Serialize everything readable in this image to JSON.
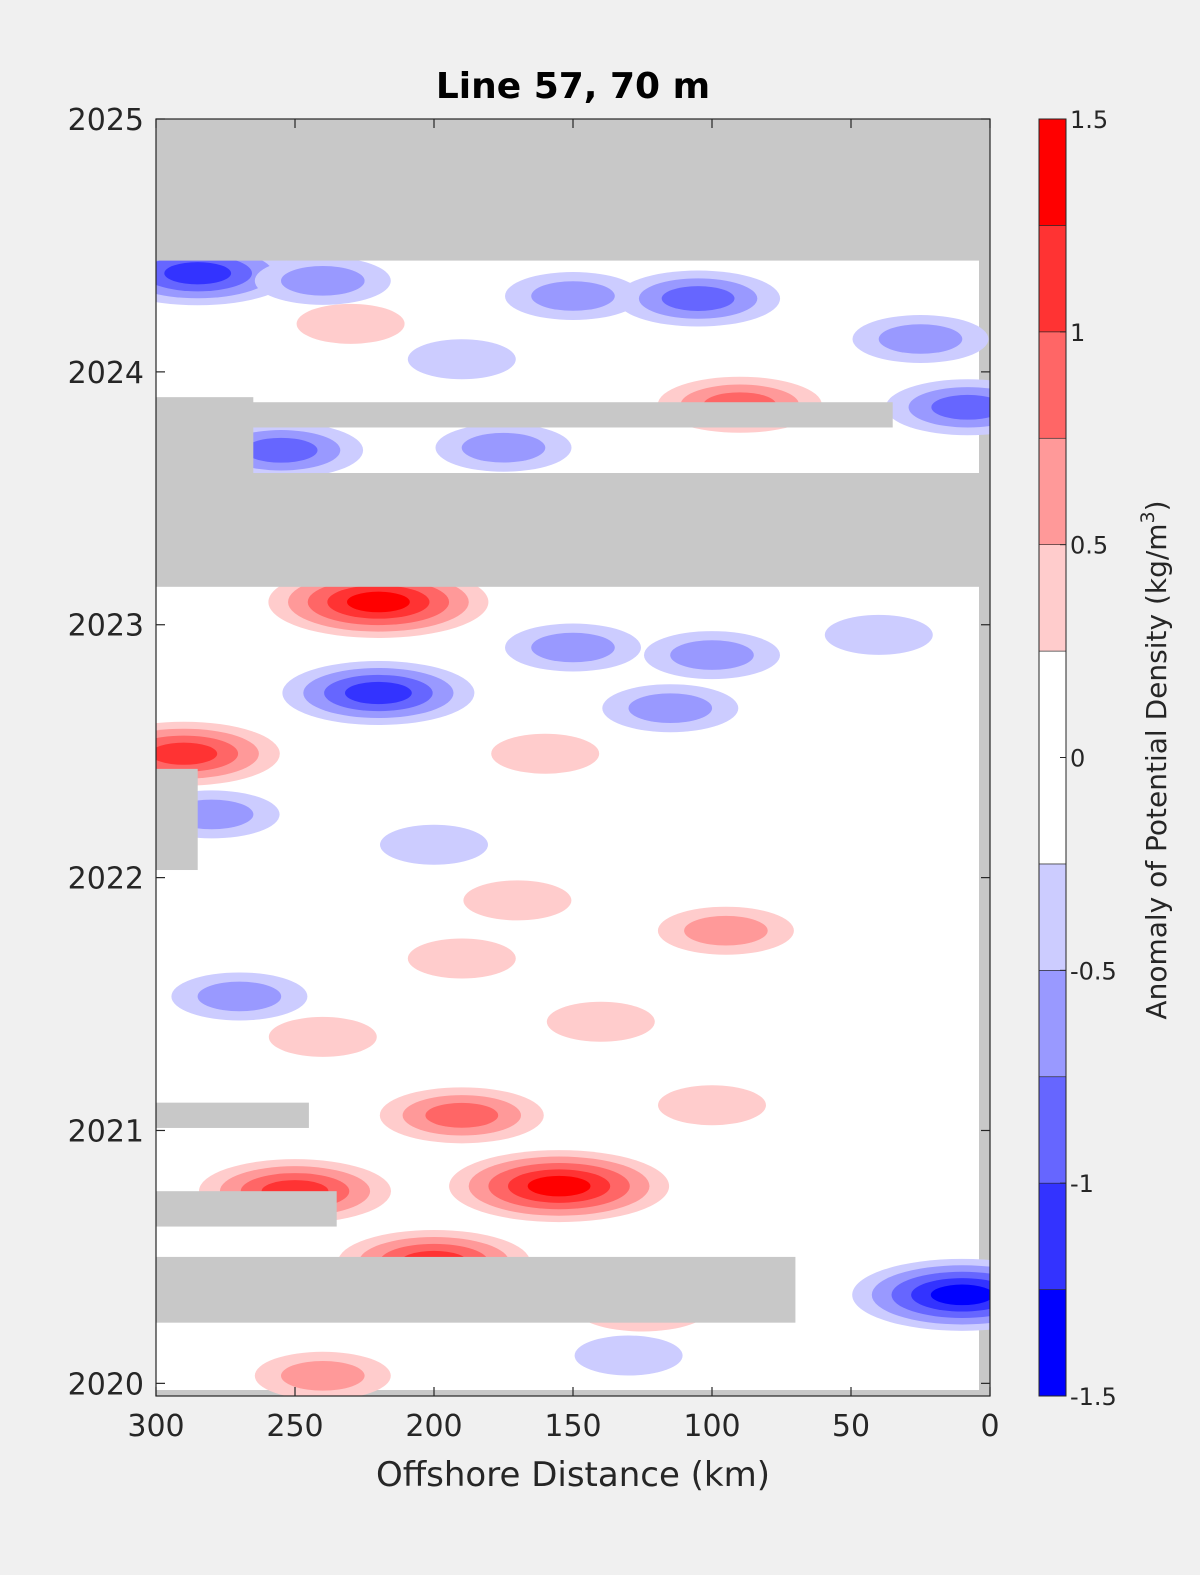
{
  "chart_data": {
    "type": "heatmap",
    "title": "Line 57, 70 m",
    "xlabel": "Offshore Distance (km)",
    "ylabel": "",
    "x_reversed": true,
    "xlim": [
      300,
      0
    ],
    "ylim": [
      2019.95,
      2025
    ],
    "xticks": [
      300,
      250,
      200,
      150,
      100,
      50,
      0
    ],
    "yticks": [
      2020,
      2021,
      2022,
      2023,
      2024,
      2025
    ],
    "colorbar": {
      "label": "Anomaly of Potential Density (kg/m",
      "label_superscript": "3",
      "label_suffix": ")",
      "range": [
        -1.5,
        1.5
      ],
      "ticks": [
        -1.5,
        -1,
        -0.5,
        0,
        0.5,
        1,
        1.5
      ],
      "tick_labels": [
        "-1.5",
        "-1",
        "-0.5",
        "0",
        "0.5",
        "1",
        "1.5"
      ],
      "levels": [
        -1.5,
        -1.25,
        -1.0,
        -0.75,
        -0.5,
        -0.25,
        0.25,
        0.5,
        0.75,
        1.0,
        1.25,
        1.5
      ],
      "colors": [
        "#0000ff",
        "#3333ff",
        "#6666ff",
        "#9999ff",
        "#ccccff",
        "#ffffff",
        "#ffcccc",
        "#ff9999",
        "#ff6666",
        "#ff3333",
        "#ff0000"
      ]
    },
    "no_data_color": "#c8c8c8",
    "no_data_regions": [
      {
        "x": [
          300,
          0
        ],
        "y": [
          2024.44,
          2025
        ]
      },
      {
        "x": [
          300,
          0
        ],
        "y": [
          2023.15,
          2023.6
        ]
      },
      {
        "x": [
          300,
          35
        ],
        "y": [
          2023.78,
          2023.88
        ]
      },
      {
        "x": [
          300,
          265
        ],
        "y": [
          2023.6,
          2023.9
        ]
      },
      {
        "x": [
          300,
          285
        ],
        "y": [
          2022.03,
          2022.43
        ]
      },
      {
        "x": [
          300,
          245
        ],
        "y": [
          2021.01,
          2021.11
        ]
      },
      {
        "x": [
          300,
          235
        ],
        "y": [
          2020.62,
          2020.76
        ]
      },
      {
        "x": [
          300,
          70
        ],
        "y": [
          2020.24,
          2020.5
        ]
      }
    ],
    "anomalies": [
      {
        "x": 285,
        "y": 2024.39,
        "value": -1.1
      },
      {
        "x": 240,
        "y": 2024.36,
        "value": -0.6
      },
      {
        "x": 150,
        "y": 2024.3,
        "value": -0.6
      },
      {
        "x": 105,
        "y": 2024.29,
        "value": -0.8
      },
      {
        "x": 25,
        "y": 2024.13,
        "value": -0.6
      },
      {
        "x": 230,
        "y": 2024.19,
        "value": 0.3
      },
      {
        "x": 190,
        "y": 2024.05,
        "value": -0.3
      },
      {
        "x": 8,
        "y": 2023.86,
        "value": -0.8
      },
      {
        "x": 90,
        "y": 2023.87,
        "value": 0.7
      },
      {
        "x": 255,
        "y": 2023.69,
        "value": -0.8
      },
      {
        "x": 175,
        "y": 2023.7,
        "value": -0.4
      },
      {
        "x": 220,
        "y": 2023.09,
        "value": 1.3
      },
      {
        "x": 150,
        "y": 2022.91,
        "value": -0.6
      },
      {
        "x": 100,
        "y": 2022.88,
        "value": -0.5
      },
      {
        "x": 40,
        "y": 2022.96,
        "value": -0.3
      },
      {
        "x": 220,
        "y": 2022.73,
        "value": -0.9
      },
      {
        "x": 115,
        "y": 2022.67,
        "value": -0.6
      },
      {
        "x": 290,
        "y": 2022.49,
        "value": 1.1
      },
      {
        "x": 160,
        "y": 2022.49,
        "value": 0.3
      },
      {
        "x": 280,
        "y": 2022.25,
        "value": -0.6
      },
      {
        "x": 200,
        "y": 2022.13,
        "value": -0.3
      },
      {
        "x": 95,
        "y": 2021.79,
        "value": 0.6
      },
      {
        "x": 170,
        "y": 2021.91,
        "value": 0.3
      },
      {
        "x": 190,
        "y": 2021.68,
        "value": 0.3
      },
      {
        "x": 270,
        "y": 2021.53,
        "value": -0.6
      },
      {
        "x": 140,
        "y": 2021.43,
        "value": 0.3
      },
      {
        "x": 240,
        "y": 2021.37,
        "value": 0.3
      },
      {
        "x": 190,
        "y": 2021.06,
        "value": 0.8
      },
      {
        "x": 100,
        "y": 2021.1,
        "value": 0.3
      },
      {
        "x": 155,
        "y": 2020.78,
        "value": 1.2
      },
      {
        "x": 250,
        "y": 2020.76,
        "value": 0.9
      },
      {
        "x": 200,
        "y": 2020.48,
        "value": 0.9
      },
      {
        "x": 125,
        "y": 2020.3,
        "value": 0.6
      },
      {
        "x": 10,
        "y": 2020.35,
        "value": -1.2
      },
      {
        "x": 130,
        "y": 2020.11,
        "value": -0.3
      },
      {
        "x": 240,
        "y": 2020.03,
        "value": 0.6
      }
    ]
  }
}
